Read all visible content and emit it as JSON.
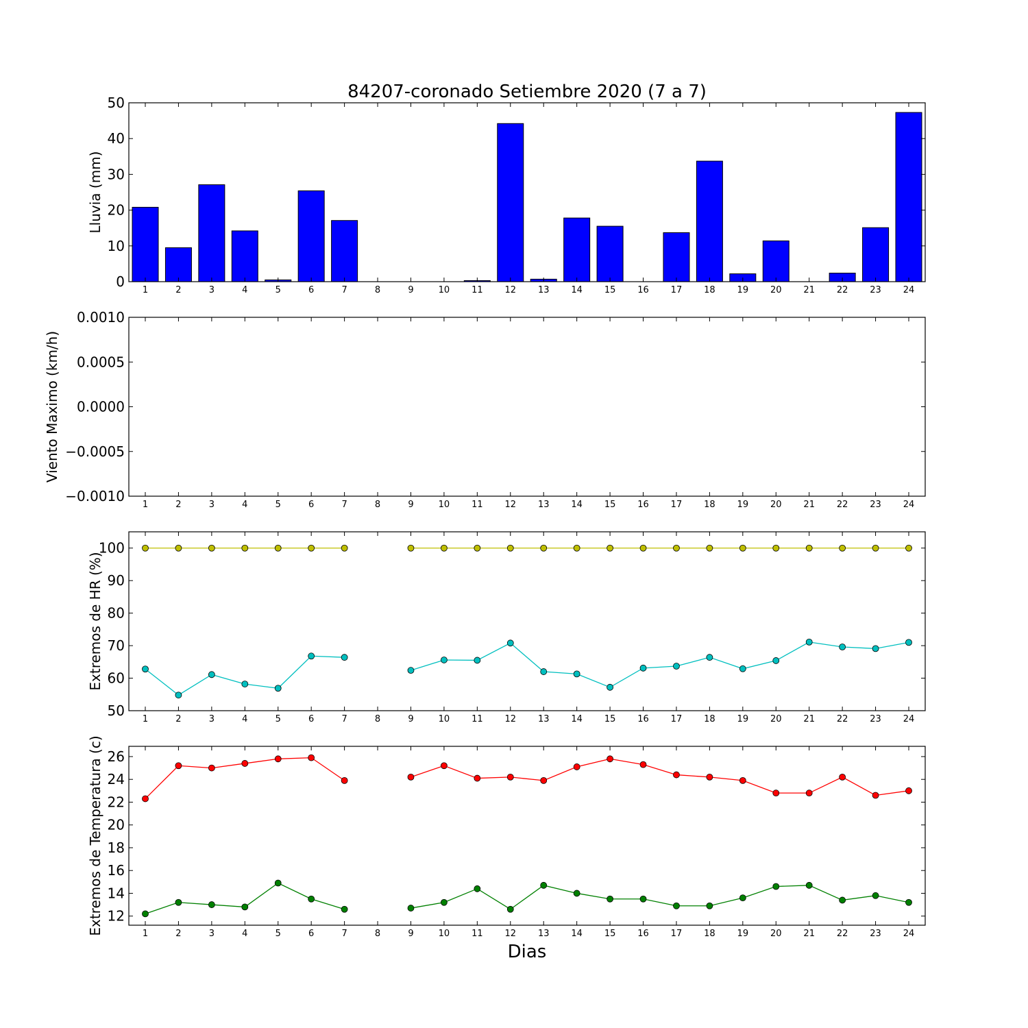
{
  "figure": {
    "title": "84207-coronado Setiembre 2020  (7 a 7)",
    "xlabel": "Dias",
    "colors": {
      "background": "#ffffff",
      "bar": "#0000ff",
      "hr_max": "#bfbf00",
      "hr_min": "#00bfbf",
      "temp_max": "#ff0000",
      "temp_min": "#008000"
    }
  },
  "chart_data": [
    {
      "type": "bar",
      "ylabel": "Lluvia (mm)",
      "categories": [
        "1",
        "2",
        "3",
        "4",
        "5",
        "6",
        "7",
        "8",
        "9",
        "10",
        "11",
        "12",
        "13",
        "14",
        "15",
        "16",
        "17",
        "18",
        "19",
        "20",
        "21",
        "22",
        "23",
        "24"
      ],
      "values": [
        20.8,
        9.5,
        27.1,
        14.2,
        0.5,
        25.4,
        17.1,
        0,
        0,
        0,
        0.3,
        44.2,
        0.7,
        17.8,
        15.5,
        0,
        13.7,
        33.7,
        2.2,
        11.4,
        0,
        2.4,
        15.1,
        47.3
      ],
      "ylim": [
        0,
        50
      ],
      "yticks": [
        "0",
        "10",
        "20",
        "30",
        "40",
        "50"
      ]
    },
    {
      "type": "line",
      "ylabel": "Viento Maximo (km/h)",
      "categories": [
        "1",
        "2",
        "3",
        "4",
        "5",
        "6",
        "7",
        "8",
        "9",
        "10",
        "11",
        "12",
        "13",
        "14",
        "15",
        "16",
        "17",
        "18",
        "19",
        "20",
        "21",
        "22",
        "23",
        "24"
      ],
      "series": [],
      "ylim": [
        -0.001,
        0.001
      ],
      "yticks": [
        "−0.0010",
        "−0.0005",
        "0.0000",
        "0.0005",
        "0.0010"
      ]
    },
    {
      "type": "line",
      "ylabel": "Extremos de HR (%)",
      "categories": [
        "1",
        "2",
        "3",
        "4",
        "5",
        "6",
        "7",
        "8",
        "9",
        "10",
        "11",
        "12",
        "13",
        "14",
        "15",
        "16",
        "17",
        "18",
        "19",
        "20",
        "21",
        "22",
        "23",
        "24"
      ],
      "series": [
        {
          "values": [
            100,
            100,
            100,
            100,
            100,
            100,
            100,
            null,
            100,
            100,
            100,
            100,
            100,
            100,
            100,
            100,
            100,
            100,
            100,
            100,
            100,
            100,
            100,
            100
          ]
        },
        {
          "values": [
            62.8,
            54.8,
            61.1,
            58.2,
            56.9,
            66.8,
            66.4,
            null,
            62.4,
            65.6,
            65.5,
            70.8,
            62.0,
            61.3,
            57.2,
            63.1,
            63.7,
            66.4,
            62.9,
            65.4,
            71.1,
            69.6,
            69.1,
            71.0
          ]
        }
      ],
      "ylim": [
        50,
        105
      ],
      "yticks": [
        "50",
        "60",
        "70",
        "80",
        "90",
        "100"
      ]
    },
    {
      "type": "line",
      "ylabel": "Extremos de Temperatura (c)",
      "categories": [
        "1",
        "2",
        "3",
        "4",
        "5",
        "6",
        "7",
        "8",
        "9",
        "10",
        "11",
        "12",
        "13",
        "14",
        "15",
        "16",
        "17",
        "18",
        "19",
        "20",
        "21",
        "22",
        "23",
        "24"
      ],
      "series": [
        {
          "values": [
            22.3,
            25.2,
            25.0,
            25.4,
            25.8,
            25.9,
            23.9,
            null,
            24.2,
            25.2,
            24.1,
            24.2,
            23.9,
            25.1,
            25.8,
            25.3,
            24.4,
            24.2,
            23.9,
            22.8,
            22.8,
            24.2,
            22.6,
            23.0
          ]
        },
        {
          "values": [
            12.2,
            13.2,
            13.0,
            12.8,
            14.9,
            13.5,
            12.6,
            null,
            12.7,
            13.2,
            14.4,
            12.6,
            14.7,
            14.0,
            13.5,
            13.5,
            12.9,
            12.9,
            13.6,
            14.6,
            14.7,
            13.4,
            13.8,
            13.2
          ]
        }
      ],
      "ylim": [
        11.2,
        26.9
      ],
      "yticks": [
        "12",
        "14",
        "16",
        "18",
        "20",
        "22",
        "24",
        "26"
      ]
    }
  ]
}
